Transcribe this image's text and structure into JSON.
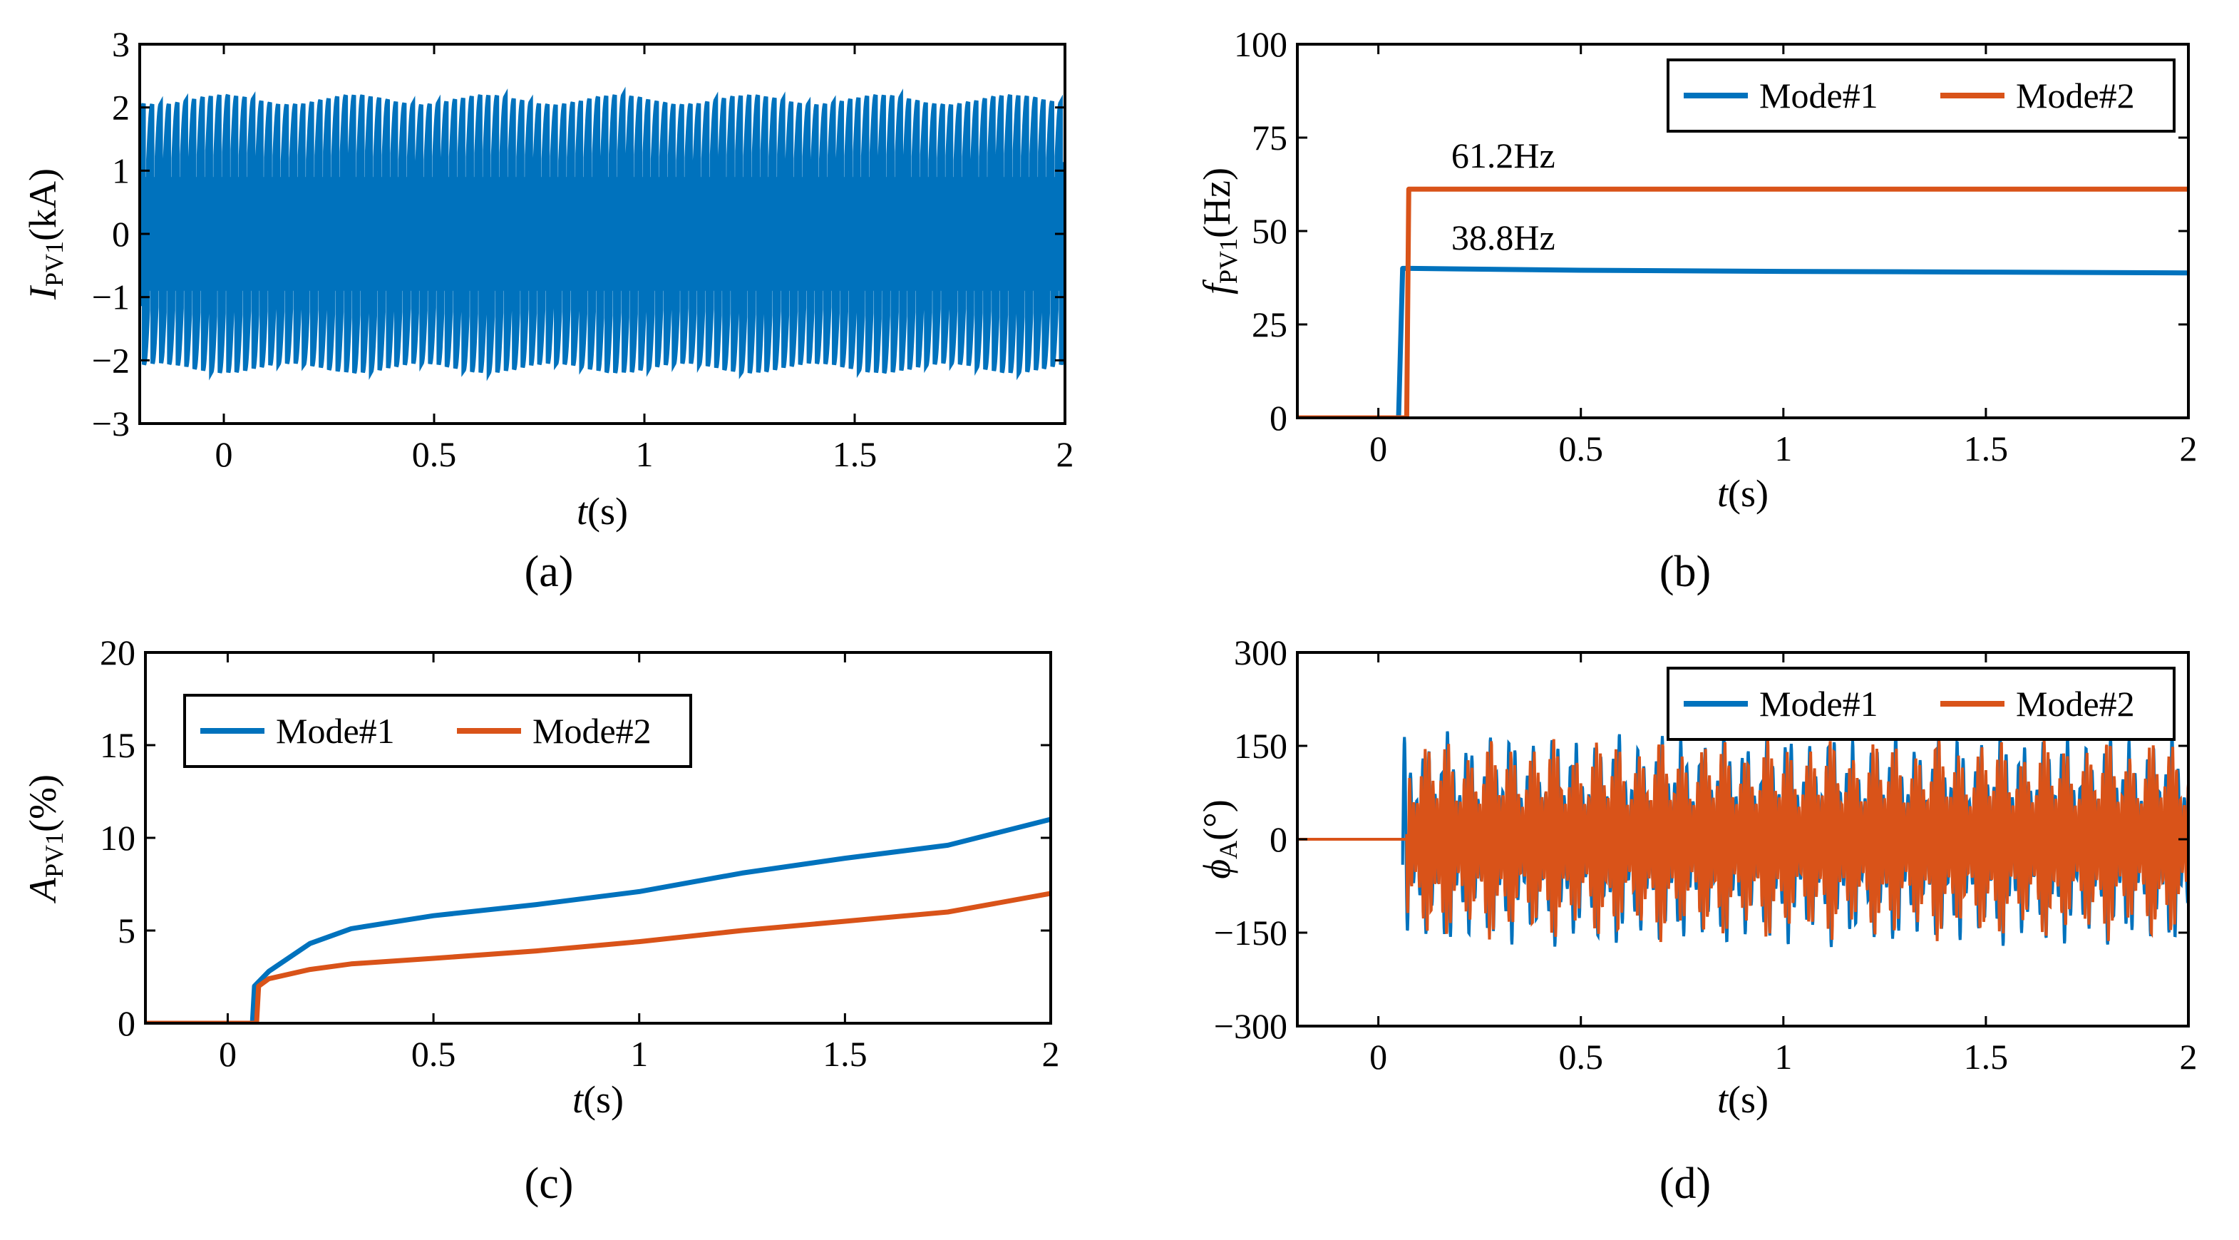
{
  "colors": {
    "mode1": "#0072BD",
    "mode2": "#D95319",
    "axis": "#000000"
  },
  "chart_data": [
    {
      "id": "a",
      "type": "line",
      "caption": "(a)",
      "ylabel_main": "I",
      "ylabel_sub": "PV1",
      "ylabel_unit": "(kA)",
      "xlabel_main": "t",
      "xlabel_unit": "(s)",
      "xlim": [
        -0.2,
        2
      ],
      "ylim": [
        -3,
        3
      ],
      "xticks": [
        0,
        0.5,
        1,
        1.5,
        2
      ],
      "xtick_labels": [
        "0",
        "0.5",
        "1",
        "1.5",
        "2"
      ],
      "yticks": [
        -3,
        -2,
        -1,
        0,
        1,
        2,
        3
      ],
      "ytick_labels": [
        "−3",
        "−2",
        "−1",
        "0",
        "1",
        "2",
        "3"
      ],
      "series": [
        {
          "name": "I_PV1",
          "color": "#0072BD",
          "kind": "oscillation",
          "freq_hz": 50,
          "envelope_max": 2.2,
          "envelope_min": 2.05,
          "inner_band": 0.9,
          "x_start": -0.2,
          "x_end": 2
        }
      ]
    },
    {
      "id": "b",
      "type": "line",
      "caption": "(b)",
      "ylabel_main": "f",
      "ylabel_sub": "PV1",
      "ylabel_unit": "(Hz)",
      "xlabel_main": "t",
      "xlabel_unit": "(s)",
      "xlim": [
        -0.2,
        2
      ],
      "ylim": [
        0,
        100
      ],
      "xticks": [
        0,
        0.5,
        1,
        1.5,
        2
      ],
      "xtick_labels": [
        "0",
        "0.5",
        "1",
        "1.5",
        "2"
      ],
      "yticks": [
        0,
        25,
        50,
        75,
        100
      ],
      "ytick_labels": [
        "0",
        "25",
        "50",
        "75",
        "100"
      ],
      "legend": {
        "placement": "top-right",
        "entries": [
          "Mode#1",
          "Mode#2"
        ]
      },
      "annotations": [
        {
          "text": "61.2Hz",
          "x": 0.18,
          "y": 67
        },
        {
          "text": "38.8Hz",
          "x": 0.18,
          "y": 45
        }
      ],
      "series": [
        {
          "name": "Mode#1",
          "color": "#0072BD",
          "x": [
            -0.2,
            0.05,
            0.06,
            0.08,
            0.5,
            1.0,
            1.5,
            2.0
          ],
          "y": [
            0,
            0,
            40,
            40,
            39.5,
            39.2,
            39.0,
            38.8
          ]
        },
        {
          "name": "Mode#2",
          "color": "#D95319",
          "x": [
            -0.2,
            0.07,
            0.075,
            0.5,
            1.0,
            1.5,
            2.0
          ],
          "y": [
            0,
            0,
            61.2,
            61.2,
            61.2,
            61.2,
            61.2
          ]
        }
      ]
    },
    {
      "id": "c",
      "type": "line",
      "caption": "(c)",
      "ylabel_main": "A",
      "ylabel_sub": "PV1",
      "ylabel_unit": "(%)",
      "xlabel_main": "t",
      "xlabel_unit": "(s)",
      "xlim": [
        -0.2,
        2
      ],
      "ylim": [
        0,
        20
      ],
      "xticks": [
        0,
        0.5,
        1,
        1.5,
        2
      ],
      "xtick_labels": [
        "0",
        "0.5",
        "1",
        "1.5",
        "2"
      ],
      "yticks": [
        0,
        5,
        10,
        15,
        20
      ],
      "ytick_labels": [
        "0",
        "5",
        "10",
        "15",
        "20"
      ],
      "legend": {
        "placement": "top-left",
        "entries": [
          "Mode#1",
          "Mode#2"
        ]
      },
      "series": [
        {
          "name": "Mode#1",
          "color": "#0072BD",
          "x": [
            -0.2,
            0.06,
            0.065,
            0.1,
            0.2,
            0.3,
            0.5,
            0.75,
            1.0,
            1.25,
            1.5,
            1.75,
            2.0
          ],
          "y": [
            0,
            0,
            2.0,
            2.8,
            4.3,
            5.1,
            5.8,
            6.4,
            7.1,
            8.1,
            8.9,
            9.6,
            11.0
          ]
        },
        {
          "name": "Mode#2",
          "color": "#D95319",
          "x": [
            -0.2,
            0.07,
            0.075,
            0.1,
            0.2,
            0.3,
            0.5,
            0.75,
            1.0,
            1.25,
            1.5,
            1.75,
            2.0
          ],
          "y": [
            0,
            0,
            2.0,
            2.4,
            2.9,
            3.2,
            3.5,
            3.9,
            4.4,
            5.0,
            5.5,
            6.0,
            7.0
          ]
        }
      ]
    },
    {
      "id": "d",
      "type": "line",
      "caption": "(d)",
      "ylabel_main": "ϕ",
      "ylabel_sub": "A",
      "ylabel_unit": "(°)",
      "xlabel_main": "t",
      "xlabel_unit": "(s)",
      "xlim": [
        -0.2,
        2
      ],
      "ylim": [
        -300,
        300
      ],
      "xticks": [
        0,
        0.5,
        1,
        1.5,
        2
      ],
      "xtick_labels": [
        "0",
        "0.5",
        "1",
        "1.5",
        "2"
      ],
      "yticks": [
        -300,
        -150,
        0,
        150,
        300
      ],
      "ytick_labels": [
        "−300",
        "−150",
        "0",
        "150",
        "300"
      ],
      "legend": {
        "placement": "top-right",
        "entries": [
          "Mode#1",
          "Mode#2"
        ]
      },
      "series": [
        {
          "name": "Mode#1",
          "color": "#0072BD",
          "kind": "oscillation",
          "start_x": 0.06,
          "amp_max": 175,
          "amp_min": 150,
          "freq_hz": 38.8
        },
        {
          "name": "Mode#2",
          "color": "#D95319",
          "kind": "oscillation",
          "start_x": 0.07,
          "amp_max": 165,
          "amp_min": 130,
          "freq_hz": 61.2
        }
      ]
    }
  ]
}
